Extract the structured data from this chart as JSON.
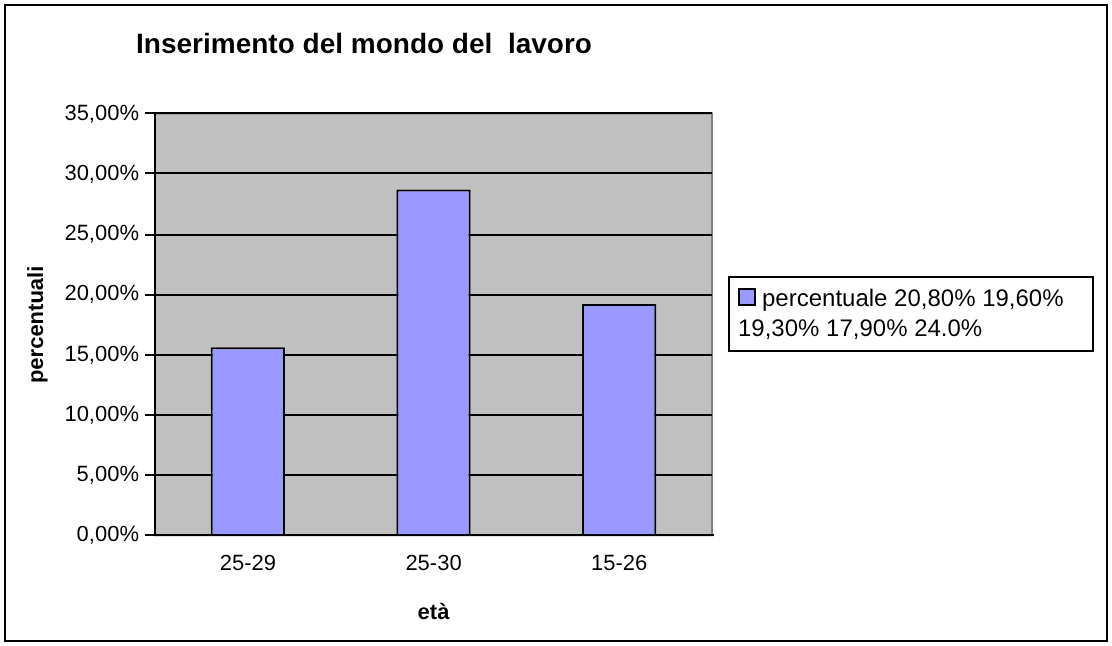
{
  "chart_data": {
    "type": "bar",
    "title": "Inserimento del mondo del  lavoro",
    "xlabel": "età",
    "ylabel": "percentuali",
    "categories": [
      "25-29",
      "25-30",
      "15-26"
    ],
    "series": [
      {
        "name": "percentuale 20,80% 19,60% 19,30% 17,90% 24.0%",
        "color": "#9999ff",
        "values": [
          15.6,
          28.7,
          19.2
        ]
      }
    ],
    "ylim": [
      0,
      35
    ],
    "yticks": [
      {
        "value": 0,
        "label": "0,00%"
      },
      {
        "value": 5,
        "label": "5,00%"
      },
      {
        "value": 10,
        "label": "10,00%"
      },
      {
        "value": 15,
        "label": "15,00%"
      },
      {
        "value": 20,
        "label": "20,00%"
      },
      {
        "value": 25,
        "label": "25,00%"
      },
      {
        "value": 30,
        "label": "30,00%"
      },
      {
        "value": 35,
        "label": "35,00%"
      }
    ],
    "grid": "y",
    "legend": "right"
  }
}
